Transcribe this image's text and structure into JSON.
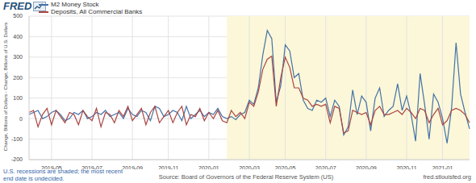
{
  "chart_data": {
    "type": "line",
    "logo": "FRED",
    "ylabel": "Change, Billions of Dollars - Change, Billions of U.S. Dollars",
    "note": "U.S. recessions are shaded; the most recent end date is undecided.",
    "source": "Source: Board of Governors of the Federal Reserve System (US)",
    "credit": "fred.stlouisfed.org",
    "legend": "top-left",
    "grid": true,
    "ylim": [
      -200,
      500
    ],
    "yticks": [
      -200,
      -100,
      0,
      100,
      200,
      300,
      400,
      500
    ],
    "shaded": {
      "from": 44,
      "to": 98
    },
    "categories": [
      null,
      null,
      null,
      null,
      null,
      "2019-05",
      null,
      null,
      null,
      null,
      null,
      null,
      null,
      null,
      "2019-07",
      null,
      null,
      null,
      null,
      null,
      null,
      null,
      null,
      "2019-09",
      null,
      null,
      null,
      null,
      null,
      null,
      null,
      "2019-11",
      null,
      null,
      null,
      null,
      null,
      null,
      null,
      null,
      "2020-01",
      null,
      null,
      null,
      null,
      null,
      null,
      null,
      null,
      "2020-03",
      null,
      null,
      null,
      null,
      null,
      null,
      null,
      "2020-05",
      null,
      null,
      null,
      null,
      null,
      null,
      null,
      null,
      "2020-07",
      null,
      null,
      null,
      null,
      null,
      null,
      null,
      null,
      "2020-09",
      null,
      null,
      null,
      null,
      null,
      null,
      null,
      null,
      "2020-11",
      null,
      null,
      null,
      null,
      null,
      null,
      null,
      "2021-01",
      null,
      null,
      null,
      null,
      null,
      null
    ],
    "series": [
      {
        "name": "M2 Money Stock",
        "color": "#4572a7",
        "values": [
          20,
          30,
          40,
          0,
          10,
          30,
          40,
          20,
          -10,
          0,
          30,
          20,
          40,
          0,
          10,
          30,
          20,
          40,
          10,
          20,
          30,
          0,
          50,
          20,
          10,
          40,
          30,
          -10,
          60,
          50,
          10,
          20,
          40,
          30,
          -10,
          60,
          0,
          20,
          40,
          10,
          30,
          20,
          50,
          10,
          0,
          10,
          -5,
          20,
          30,
          90,
          70,
          150,
          310,
          430,
          390,
          80,
          160,
          360,
          330,
          200,
          220,
          90,
          50,
          40,
          90,
          80,
          100,
          10,
          90,
          60,
          -80,
          -40,
          140,
          20,
          110,
          80,
          -60,
          100,
          150,
          10,
          40,
          60,
          170,
          40,
          110,
          20,
          -110,
          220,
          70,
          -100,
          120,
          80,
          0,
          -120,
          50,
          370,
          120,
          30,
          -50
        ]
      },
      {
        "name": "Deposits, All Commercial Banks",
        "color": "#aa4643",
        "values": [
          30,
          40,
          -40,
          20,
          50,
          -30,
          40,
          10,
          -20,
          30,
          20,
          -30,
          40,
          10,
          -10,
          50,
          -40,
          30,
          20,
          -20,
          40,
          10,
          60,
          -10,
          20,
          50,
          -30,
          30,
          60,
          -20,
          10,
          40,
          -20,
          30,
          60,
          -30,
          20,
          10,
          50,
          -10,
          30,
          0,
          40,
          -10,
          -20,
          40,
          10,
          30,
          0,
          80,
          60,
          130,
          240,
          290,
          305,
          60,
          200,
          300,
          250,
          150,
          150,
          100,
          90,
          60,
          70,
          60,
          70,
          -20,
          60,
          50,
          -70,
          -60,
          40,
          30,
          20,
          30,
          -30,
          40,
          60,
          20,
          20,
          30,
          40,
          20,
          50,
          30,
          0,
          50,
          40,
          -20,
          20,
          50,
          -30,
          -10,
          40,
          50,
          40,
          20,
          -20
        ]
      }
    ]
  }
}
